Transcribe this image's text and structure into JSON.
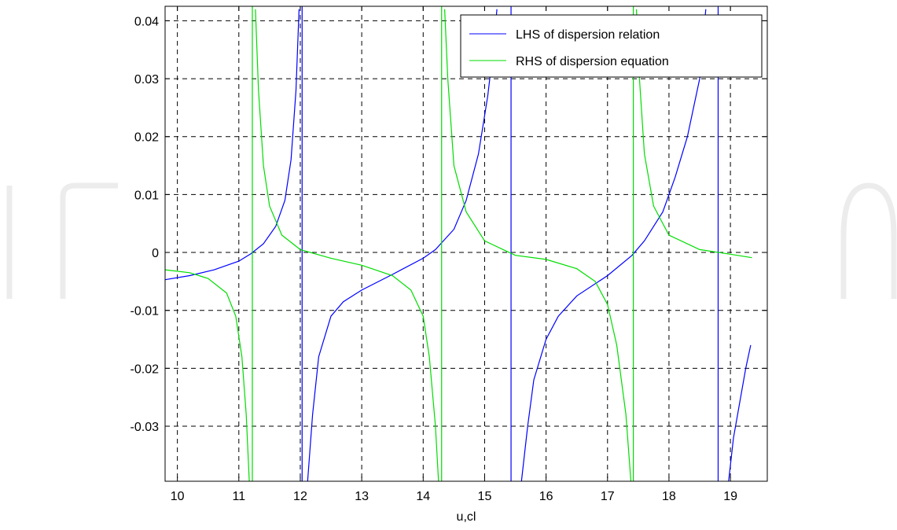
{
  "chart_data": {
    "type": "line",
    "title": "",
    "xlabel": "u,cl",
    "ylabel": "",
    "xlim": [
      9.8,
      19.6
    ],
    "ylim": [
      -0.0395,
      0.0425
    ],
    "grid": true,
    "grid_style": "dashed",
    "legend_position": "top-right",
    "x_ticks": [
      10,
      11,
      12,
      13,
      14,
      15,
      16,
      17,
      18,
      19
    ],
    "x_tick_labels": [
      "10",
      "11",
      "12",
      "13",
      "14",
      "15",
      "16",
      "17",
      "18",
      "19"
    ],
    "y_ticks": [
      -0.03,
      -0.02,
      -0.01,
      0,
      0.01,
      0.02,
      0.03,
      0.04
    ],
    "y_tick_labels": [
      "-0.03",
      "-0.02",
      "-0.01",
      "0",
      "0.01",
      "0.02",
      "0.03",
      "0.04"
    ],
    "series": [
      {
        "name": "LHS of dispersion relation",
        "color": "#0000ff",
        "segments": [
          [
            [
              9.8,
              -0.0047
            ],
            [
              10.2,
              -0.004
            ],
            [
              10.6,
              -0.003
            ],
            [
              11.0,
              -0.0015
            ],
            [
              11.2,
              -0.0002
            ],
            [
              11.4,
              0.0015
            ],
            [
              11.6,
              0.0045
            ],
            [
              11.75,
              0.009
            ],
            [
              11.85,
              0.016
            ],
            [
              11.93,
              0.028
            ],
            [
              11.98,
              0.042
            ]
          ],
          [
            [
              12.12,
              -0.0395
            ],
            [
              12.2,
              -0.028
            ],
            [
              12.3,
              -0.018
            ],
            [
              12.5,
              -0.011
            ],
            [
              12.7,
              -0.0085
            ],
            [
              13.0,
              -0.0065
            ],
            [
              13.5,
              -0.0038
            ],
            [
              14.0,
              -0.001
            ],
            [
              14.2,
              0.0005
            ],
            [
              14.5,
              0.004
            ],
            [
              14.7,
              0.009
            ],
            [
              14.9,
              0.017
            ],
            [
              15.05,
              0.027
            ],
            [
              15.15,
              0.036
            ],
            [
              15.2,
              0.042
            ]
          ],
          [
            [
              15.6,
              -0.0395
            ],
            [
              15.7,
              -0.03
            ],
            [
              15.8,
              -0.022
            ],
            [
              16.0,
              -0.015
            ],
            [
              16.2,
              -0.011
            ],
            [
              16.5,
              -0.0075
            ],
            [
              17.0,
              -0.004
            ],
            [
              17.4,
              -0.0005
            ],
            [
              17.6,
              0.002
            ],
            [
              17.9,
              0.007
            ],
            [
              18.1,
              0.013
            ],
            [
              18.3,
              0.02
            ],
            [
              18.5,
              0.03
            ],
            [
              18.6,
              0.042
            ]
          ],
          [
            [
              18.97,
              -0.0395
            ],
            [
              19.05,
              -0.032
            ],
            [
              19.15,
              -0.026
            ],
            [
              19.25,
              -0.02
            ],
            [
              19.33,
              -0.016
            ]
          ]
        ],
        "vertical_lines": [
          12.03,
          15.43,
          18.8
        ]
      },
      {
        "name": "RHS of dispersion equation",
        "color": "#00dd00",
        "segments": [
          [
            [
              9.8,
              -0.003
            ],
            [
              10.2,
              -0.0035
            ],
            [
              10.5,
              -0.0045
            ],
            [
              10.8,
              -0.007
            ],
            [
              10.95,
              -0.011
            ],
            [
              11.05,
              -0.018
            ],
            [
              11.12,
              -0.028
            ],
            [
              11.17,
              -0.0395
            ]
          ],
          [
            [
              11.27,
              0.042
            ],
            [
              11.32,
              0.028
            ],
            [
              11.4,
              0.015
            ],
            [
              11.5,
              0.008
            ],
            [
              11.7,
              0.003
            ],
            [
              12.0,
              0.0005
            ],
            [
              12.5,
              -0.001
            ],
            [
              13.0,
              -0.0022
            ],
            [
              13.5,
              -0.004
            ],
            [
              13.8,
              -0.0065
            ],
            [
              14.0,
              -0.011
            ],
            [
              14.1,
              -0.018
            ],
            [
              14.2,
              -0.03
            ],
            [
              14.25,
              -0.0395
            ]
          ],
          [
            [
              14.35,
              0.042
            ],
            [
              14.4,
              0.03
            ],
            [
              14.5,
              0.015
            ],
            [
              14.7,
              0.007
            ],
            [
              15.0,
              0.002
            ],
            [
              15.5,
              -0.0005
            ],
            [
              16.0,
              -0.0012
            ],
            [
              16.5,
              -0.0028
            ],
            [
              16.8,
              -0.005
            ],
            [
              17.0,
              -0.009
            ],
            [
              17.15,
              -0.016
            ],
            [
              17.3,
              -0.028
            ],
            [
              17.38,
              -0.0395
            ]
          ],
          [
            [
              17.47,
              0.042
            ],
            [
              17.52,
              0.03
            ],
            [
              17.6,
              0.017
            ],
            [
              17.75,
              0.008
            ],
            [
              18.0,
              0.003
            ],
            [
              18.5,
              0.0005
            ],
            [
              19.0,
              -0.0003
            ],
            [
              19.35,
              -0.0009
            ]
          ]
        ],
        "vertical_lines": [
          11.22,
          14.3,
          17.42
        ]
      }
    ]
  }
}
